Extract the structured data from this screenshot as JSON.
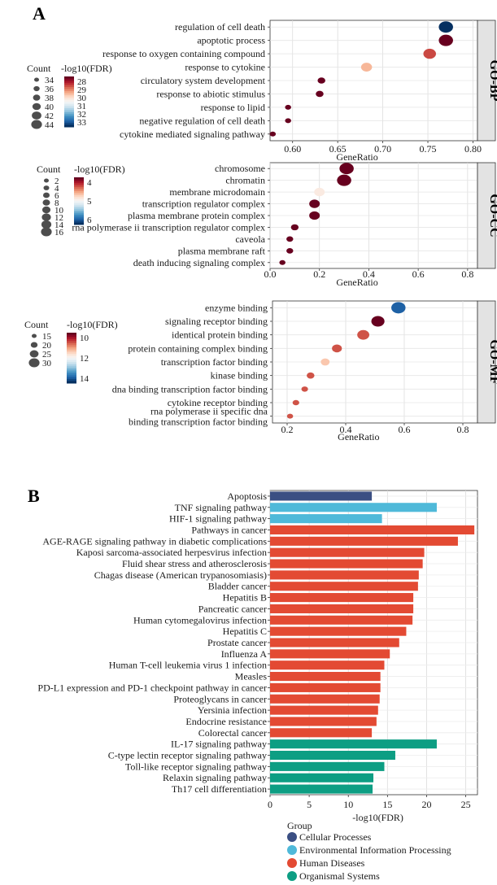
{
  "panels": {
    "a": "A",
    "b": "B"
  },
  "chart_data": [
    {
      "type": "scatter",
      "facet": "GO-BP",
      "xlabel": "GeneRatio",
      "xlim": [
        0.575,
        0.805
      ],
      "xticks": [
        0.6,
        0.65,
        0.7,
        0.75,
        0.8
      ],
      "tick_labels": [
        "0.60",
        "0.65",
        "0.70",
        "0.75",
        "0.80"
      ],
      "terms": [
        "regulation of cell death",
        "apoptotic process",
        "response to oxygen containing compound",
        "response to cytokine",
        "circulatory system development",
        "response to abiotic stimulus",
        "response to lipid",
        "negative regulation of cell death",
        "cytokine mediated signaling pathway"
      ],
      "gene_ratio": [
        0.77,
        0.77,
        0.752,
        0.682,
        0.632,
        0.63,
        0.595,
        0.595,
        0.578
      ],
      "count": [
        44,
        44,
        42,
        40,
        36,
        36,
        34,
        34,
        34
      ],
      "neg_log10_fdr": [
        34,
        28,
        29,
        30,
        28,
        28,
        28,
        28,
        28
      ],
      "legend": {
        "count_title": "Count",
        "color_title": "-log10(FDR)",
        "count_labels": [
          "34",
          "36",
          "38",
          "40",
          "42",
          "44"
        ],
        "color_labels": [
          "28",
          "29",
          "30",
          "31",
          "32",
          "33"
        ]
      }
    },
    {
      "type": "scatter",
      "facet": "GO-CC",
      "xlabel": "GeneRatio",
      "xlim": [
        0.0,
        0.84
      ],
      "xticks": [
        0.0,
        0.2,
        0.4,
        0.6,
        0.8
      ],
      "tick_labels": [
        "0.0",
        "0.2",
        "0.4",
        "0.6",
        "0.8"
      ],
      "terms": [
        "chromosome",
        "chromatin",
        "membrane microdomain",
        "transcription regulator complex",
        "plasma membrane protein complex",
        "rna polymerase ii transcription regulator complex",
        "caveola",
        "plasma membrane raft",
        "death inducing signaling complex"
      ],
      "gene_ratio": [
        0.31,
        0.3,
        0.2,
        0.18,
        0.18,
        0.1,
        0.08,
        0.08,
        0.05
      ],
      "count": [
        15,
        15,
        10,
        10,
        10,
        6,
        5,
        5,
        4
      ],
      "neg_log10_fdr": [
        4,
        4,
        5,
        4,
        4,
        4,
        4,
        4,
        4
      ],
      "legend": {
        "count_title": "Count",
        "color_title": "-log10(FDR)",
        "count_labels": [
          "2",
          "4",
          "6",
          "8",
          "10",
          "12",
          "14",
          "16"
        ],
        "color_labels": [
          "4",
          "5",
          "6"
        ]
      }
    },
    {
      "type": "scatter",
      "facet": "GO-MF",
      "xlabel": "GeneRatio",
      "xlim": [
        0.15,
        0.85
      ],
      "xticks": [
        0.2,
        0.4,
        0.6,
        0.8
      ],
      "tick_labels": [
        "0.2",
        "0.4",
        "0.6",
        "0.8"
      ],
      "terms": [
        "enzyme binding",
        "signaling receptor binding",
        "identical protein binding",
        "protein containing complex binding",
        "transcription factor binding",
        "kinase binding",
        "dna binding transcription factor binding",
        "cytokine receptor binding",
        "rna polymerase ii specific dna binding transcription factor binding"
      ],
      "term_lines": [
        [
          "enzyme binding"
        ],
        [
          "signaling receptor binding"
        ],
        [
          "identical protein binding"
        ],
        [
          "protein containing complex binding"
        ],
        [
          "transcription factor binding"
        ],
        [
          "kinase binding"
        ],
        [
          "dna binding transcription factor binding"
        ],
        [
          "cytokine receptor binding"
        ],
        [
          "rna polymerase ii specific dna",
          "binding transcription factor binding"
        ]
      ],
      "gene_ratio": [
        0.58,
        0.51,
        0.46,
        0.37,
        0.33,
        0.28,
        0.26,
        0.23,
        0.21
      ],
      "count": [
        30,
        28,
        26,
        22,
        20,
        18,
        16,
        16,
        15
      ],
      "neg_log10_fdr": [
        14,
        9,
        10,
        10,
        11,
        10,
        10,
        10,
        10
      ],
      "legend": {
        "count_title": "Count",
        "color_title": "-log10(FDR)",
        "count_labels": [
          "15",
          "20",
          "25",
          "30"
        ],
        "color_labels": [
          "10",
          "12",
          "14"
        ]
      }
    },
    {
      "type": "bar",
      "orientation": "horizontal",
      "xlabel": "-log10(FDR)",
      "xlim": [
        0,
        26.5
      ],
      "xticks": [
        0,
        5,
        10,
        15,
        20,
        25
      ],
      "categories": [
        "Apoptosis",
        "TNF signaling pathway",
        "HIF-1 signaling pathway",
        "Pathways in cancer",
        "AGE-RAGE signaling pathway in diabetic complications",
        "Kaposi sarcoma-associated herpesvirus infection",
        "Fluid shear stress and atherosclerosis",
        "Chagas disease (American trypanosomiasis)",
        "Bladder cancer",
        "Hepatitis B",
        "Pancreatic cancer",
        "Human cytomegalovirus infection",
        "Hepatitis C",
        "Prostate cancer",
        "Influenza A",
        "Human T-cell leukemia virus 1 infection",
        "Measles",
        "PD-L1 expression and PD-1 checkpoint pathway in cancer",
        "Proteoglycans in cancer",
        "Yersinia infection",
        "Endocrine resistance",
        "Colorectal cancer",
        "IL-17 signaling pathway",
        "C-type lectin receptor signaling pathway",
        "Toll-like receptor signaling pathway",
        "Relaxin signaling pathway",
        "Th17 cell differentiation"
      ],
      "values": [
        13.0,
        21.3,
        14.3,
        26.1,
        24.0,
        19.7,
        19.5,
        19.0,
        18.9,
        18.3,
        18.3,
        18.2,
        17.4,
        16.5,
        15.3,
        14.6,
        14.1,
        14.1,
        14.0,
        13.8,
        13.6,
        13.0,
        21.3,
        16.0,
        14.6,
        13.2,
        13.1
      ],
      "groups": [
        0,
        1,
        1,
        2,
        2,
        2,
        2,
        2,
        2,
        2,
        2,
        2,
        2,
        2,
        2,
        2,
        2,
        2,
        2,
        2,
        2,
        2,
        3,
        3,
        3,
        3,
        3
      ],
      "legend_title": "Group",
      "group_names": [
        "Cellular Processes",
        "Environmental Information Processing",
        "Human Diseases",
        "Organismal Systems"
      ],
      "group_colors": [
        "#3b4f83",
        "#4fb9d9",
        "#e34a33",
        "#0d9e83"
      ]
    }
  ]
}
